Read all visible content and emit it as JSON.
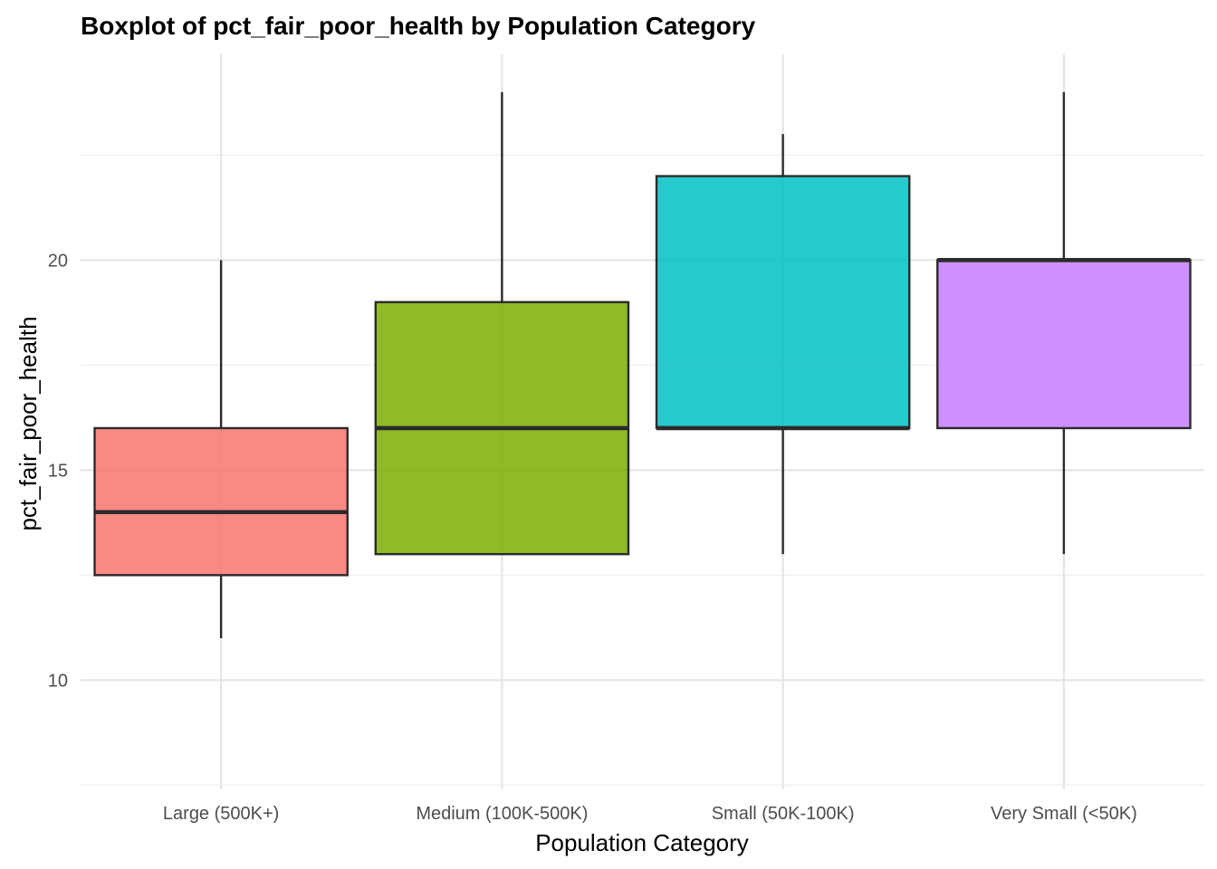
{
  "chart_data": {
    "type": "box",
    "title": "Boxplot of pct_fair_poor_health by Population Category",
    "xlabel": "Population Category",
    "ylabel": "pct_fair_poor_health",
    "ylim": [
      7.4,
      24.9
    ],
    "y_major_ticks": [
      10,
      15,
      20
    ],
    "y_minor_ticks": [
      7.5,
      12.5,
      17.5,
      22.5
    ],
    "grid": true,
    "legend": "none",
    "categories": [
      "Large (500K+)",
      "Medium (100K-500K)",
      "Small (50K-100K)",
      "Very Small (<50K)"
    ],
    "boxes": [
      {
        "category": "Large (500K+)",
        "min": 11,
        "q1": 12.5,
        "median": 14,
        "q3": 16,
        "max": 20,
        "color": "#F8766D"
      },
      {
        "category": "Medium (100K-500K)",
        "min": 13,
        "q1": 13,
        "median": 16,
        "q3": 19,
        "max": 24,
        "color": "#7CAE00"
      },
      {
        "category": "Small (50K-100K)",
        "min": 13,
        "q1": 16,
        "median": 16,
        "q3": 22,
        "max": 23,
        "color": "#00BFC4"
      },
      {
        "category": "Very Small (<50K)",
        "min": 13,
        "q1": 16,
        "median": 20,
        "q3": 20,
        "max": 24,
        "color": "#C77CFF"
      }
    ],
    "box_fill_opacity": 0.85,
    "box_outline_color": "#2b2b2b"
  }
}
